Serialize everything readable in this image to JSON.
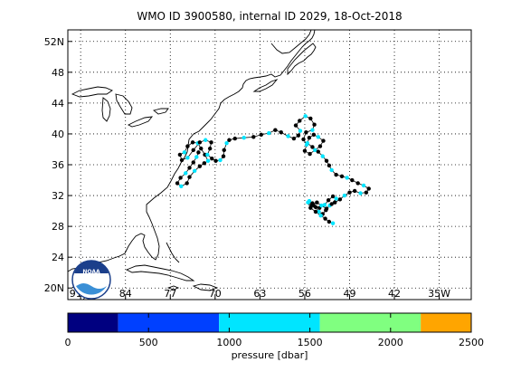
{
  "title": "WMO ID 3900580, internal ID 2029, 18-Oct-2018",
  "lat_labels": [
    "52N",
    "48",
    "44",
    "40",
    "36",
    "32",
    "28",
    "24",
    "20N"
  ],
  "lon_labels": [
    "91W",
    "84",
    "77",
    "70",
    "63",
    "56",
    "49",
    "42",
    "35W"
  ],
  "logo_text": "NOAA",
  "colorbar": {
    "label": "pressure [dbar]",
    "ticks": [
      "0",
      "500",
      "1000",
      "1500",
      "2000",
      "2500"
    ],
    "range": [
      0,
      2500
    ],
    "bins": [
      {
        "from": 0,
        "to": 312,
        "color": "#000080"
      },
      {
        "from": 312,
        "to": 937,
        "color": "#0040ff"
      },
      {
        "from": 937,
        "to": 1562,
        "color": "#00e5ff"
      },
      {
        "from": 1562,
        "to": 2187,
        "color": "#80ff80"
      },
      {
        "from": 2187,
        "to": 2500,
        "color": "#ffa500"
      }
    ]
  },
  "colors": {
    "coast": "#000000",
    "profile_shallow": "#000000",
    "profile_mid": "#00e5ff",
    "grid": "#000000"
  },
  "map_extent": {
    "lon": [
      -93,
      -30
    ],
    "lat": [
      18.5,
      53.5
    ]
  },
  "trajectory": [
    [
      -72.6,
      37.6
    ],
    [
      -72.9,
      37.0
    ],
    [
      -73.4,
      36.3
    ],
    [
      -74.0,
      35.6
    ],
    [
      -74.6,
      34.9
    ],
    [
      -75.4,
      34.3
    ],
    [
      -75.9,
      33.6
    ],
    [
      -75.3,
      33.2
    ],
    [
      -74.4,
      33.6
    ],
    [
      -74.0,
      34.4
    ],
    [
      -73.2,
      35.2
    ],
    [
      -72.4,
      35.8
    ],
    [
      -71.7,
      36.2
    ],
    [
      -71.1,
      36.5
    ],
    [
      -71.6,
      37.3
    ],
    [
      -72.2,
      38.1
    ],
    [
      -72.7,
      38.8
    ],
    [
      -73.5,
      38.9
    ],
    [
      -74.3,
      38.4
    ],
    [
      -74.8,
      37.6
    ],
    [
      -75.5,
      37.3
    ],
    [
      -75.2,
      36.6
    ],
    [
      -74.3,
      36.9
    ],
    [
      -73.4,
      37.9
    ],
    [
      -72.4,
      38.9
    ],
    [
      -71.5,
      39.2
    ],
    [
      -70.6,
      38.9
    ],
    [
      -70.8,
      38.1
    ],
    [
      -71.2,
      37.3
    ],
    [
      -70.5,
      36.8
    ],
    [
      -69.9,
      36.5
    ],
    [
      -69.2,
      36.6
    ],
    [
      -68.7,
      37.1
    ],
    [
      -68.6,
      37.9
    ],
    [
      -68.2,
      38.8
    ],
    [
      -67.8,
      39.2
    ],
    [
      -66.9,
      39.4
    ],
    [
      -65.5,
      39.5
    ],
    [
      -64.0,
      39.6
    ],
    [
      -62.8,
      39.9
    ],
    [
      -61.6,
      40.1
    ],
    [
      -60.6,
      40.5
    ],
    [
      -59.7,
      40.2
    ],
    [
      -58.6,
      39.7
    ],
    [
      -57.7,
      39.4
    ],
    [
      -57.0,
      39.8
    ],
    [
      -56.7,
      40.4
    ],
    [
      -57.4,
      41.1
    ],
    [
      -56.8,
      41.7
    ],
    [
      -55.9,
      42.3
    ],
    [
      -55.1,
      42.0
    ],
    [
      -54.5,
      41.2
    ],
    [
      -54.8,
      40.5
    ],
    [
      -55.8,
      40.2
    ],
    [
      -56.2,
      39.3
    ],
    [
      -55.7,
      38.6
    ],
    [
      -56.0,
      37.8
    ],
    [
      -55.2,
      37.4
    ],
    [
      -54.4,
      37.9
    ],
    [
      -53.6,
      38.4
    ],
    [
      -53.1,
      39.1
    ],
    [
      -53.9,
      39.6
    ],
    [
      -54.6,
      39.9
    ],
    [
      -55.3,
      39.5
    ],
    [
      -55.6,
      38.8
    ],
    [
      -54.8,
      38.3
    ],
    [
      -53.9,
      37.7
    ],
    [
      -53.2,
      37.1
    ],
    [
      -52.6,
      36.5
    ],
    [
      -52.2,
      35.9
    ],
    [
      -51.8,
      35.3
    ],
    [
      -51.1,
      34.7
    ],
    [
      -50.2,
      34.5
    ],
    [
      -49.4,
      34.3
    ],
    [
      -48.6,
      34.0
    ],
    [
      -47.7,
      33.6
    ],
    [
      -46.8,
      33.3
    ],
    [
      -46.0,
      32.9
    ],
    [
      -46.4,
      32.4
    ],
    [
      -47.3,
      32.3
    ],
    [
      -48.2,
      32.6
    ],
    [
      -49.0,
      32.4
    ],
    [
      -49.8,
      32.0
    ],
    [
      -50.5,
      31.5
    ],
    [
      -51.3,
      31.1
    ],
    [
      -52.1,
      30.7
    ],
    [
      -52.7,
      30.1
    ],
    [
      -53.2,
      29.6
    ],
    [
      -53.8,
      29.9
    ],
    [
      -54.3,
      30.5
    ],
    [
      -54.8,
      31.0
    ],
    [
      -55.3,
      31.3
    ],
    [
      -54.6,
      30.7
    ],
    [
      -53.7,
      30.4
    ],
    [
      -52.9,
      30.8
    ],
    [
      -52.3,
      31.4
    ],
    [
      -51.6,
      31.9
    ],
    [
      -51.1,
      31.6
    ],
    [
      -51.8,
      30.9
    ],
    [
      -52.6,
      30.3
    ],
    [
      -53.4,
      30.7
    ],
    [
      -54.1,
      31.1
    ],
    [
      -54.9,
      30.8
    ],
    [
      -55.5,
      31.1
    ],
    [
      -55.1,
      30.4
    ],
    [
      -54.3,
      29.9
    ],
    [
      -53.5,
      29.4
    ],
    [
      -52.8,
      29.0
    ],
    [
      -52.2,
      28.6
    ],
    [
      -51.6,
      28.4
    ]
  ]
}
